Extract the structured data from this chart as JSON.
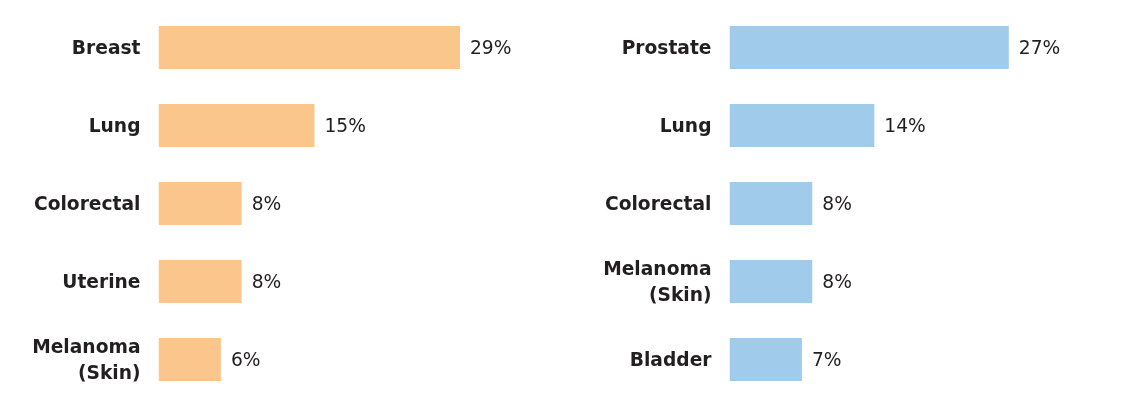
{
  "chart_data": [
    {
      "type": "bar",
      "orientation": "horizontal",
      "categories": [
        "Breast",
        "Lung",
        "Colorectal",
        "Uterine",
        "Melanoma (Skin)"
      ],
      "values": [
        29,
        15,
        8,
        8,
        6
      ],
      "color": "#fbc68b",
      "value_labels": [
        "29%",
        "15%",
        "8%",
        "8%",
        "6%"
      ],
      "grid": false,
      "tick_labels": "y"
    },
    {
      "type": "bar",
      "orientation": "horizontal",
      "categories": [
        "Prostate",
        "Lung",
        "Colorectal",
        "Melanoma (Skin)",
        "Bladder"
      ],
      "values": [
        27,
        14,
        8,
        8,
        7
      ],
      "color": "#a1cbeb",
      "value_labels": [
        "27%",
        "14%",
        "8%",
        "8%",
        "7%"
      ],
      "grid": false,
      "tick_labels": "y"
    }
  ]
}
